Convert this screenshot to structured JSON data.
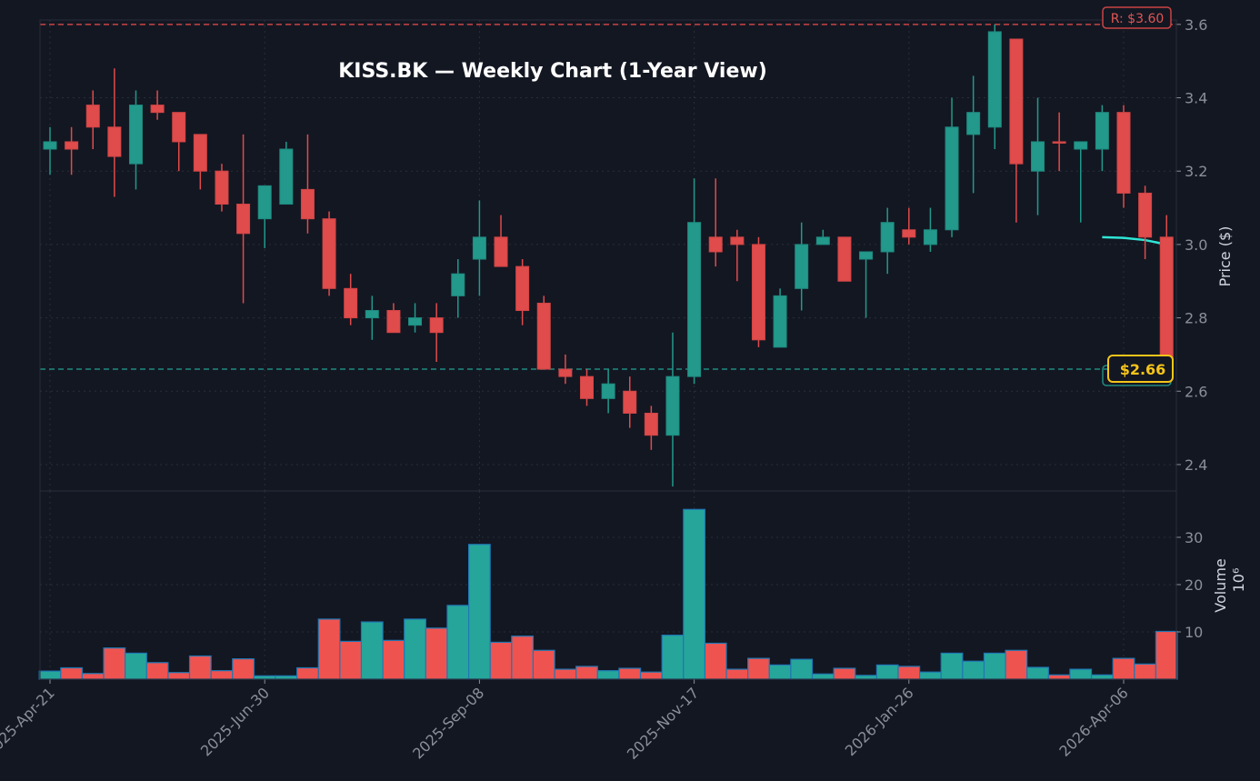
{
  "chart_data": {
    "type": "candlestick",
    "title": "KISS.BK — Weekly Chart (1-Year View)",
    "price_ylabel": "Price ($)",
    "volume_ylabel": "Volume",
    "volume_unit": "10⁶",
    "price_ylim": [
      2.328,
      3.612
    ],
    "price_yticks": [
      "2.4",
      "2.6",
      "2.8",
      "3.0",
      "3.2",
      "3.4",
      "3.6"
    ],
    "volume_ylim": [
      0,
      39.8
    ],
    "volume_yticks": [
      "10",
      "20",
      "30"
    ],
    "xticks": [
      {
        "index": 0,
        "label": "2025-Apr-21"
      },
      {
        "index": 10,
        "label": "2025-Jun-30"
      },
      {
        "index": 20,
        "label": "2025-Sep-08"
      },
      {
        "index": 30,
        "label": "2025-Nov-17"
      },
      {
        "index": 40,
        "label": "2026-Jan-26"
      },
      {
        "index": 50,
        "label": "2026-Apr-06"
      }
    ],
    "grid": true,
    "colors": {
      "up": "#26a69a",
      "down": "#ef5350",
      "background": "#131722",
      "volume_edge": "#1f77b4",
      "ma": "#2ee6d6",
      "price_tag": "#f5c518"
    },
    "resistance": {
      "value": 3.6,
      "label": "R: $3.60"
    },
    "support": {
      "value": 2.66
    },
    "last_price": {
      "value": 2.66,
      "label": "$2.66"
    },
    "ma_line": [
      [
        49,
        3.02
      ],
      [
        50,
        3.018
      ],
      [
        51,
        3.012
      ],
      [
        52,
        3.0
      ]
    ],
    "ohlc": [
      [
        3.26,
        3.32,
        3.19,
        3.28
      ],
      [
        3.28,
        3.32,
        3.19,
        3.26
      ],
      [
        3.38,
        3.42,
        3.26,
        3.32
      ],
      [
        3.32,
        3.48,
        3.13,
        3.24
      ],
      [
        3.22,
        3.42,
        3.15,
        3.38
      ],
      [
        3.38,
        3.42,
        3.34,
        3.36
      ],
      [
        3.36,
        3.36,
        3.2,
        3.28
      ],
      [
        3.3,
        3.3,
        3.15,
        3.2
      ],
      [
        3.2,
        3.22,
        3.09,
        3.11
      ],
      [
        3.11,
        3.3,
        2.84,
        3.03
      ],
      [
        3.07,
        3.16,
        2.99,
        3.16
      ],
      [
        3.11,
        3.28,
        3.11,
        3.26
      ],
      [
        3.15,
        3.3,
        3.03,
        3.07
      ],
      [
        3.07,
        3.09,
        2.86,
        2.88
      ],
      [
        2.88,
        2.92,
        2.78,
        2.8
      ],
      [
        2.8,
        2.86,
        2.74,
        2.82
      ],
      [
        2.82,
        2.84,
        2.76,
        2.76
      ],
      [
        2.78,
        2.84,
        2.76,
        2.8
      ],
      [
        2.8,
        2.84,
        2.68,
        2.76
      ],
      [
        2.86,
        2.96,
        2.8,
        2.92
      ],
      [
        2.96,
        3.12,
        2.86,
        3.02
      ],
      [
        3.02,
        3.08,
        2.94,
        2.94
      ],
      [
        2.94,
        2.96,
        2.78,
        2.82
      ],
      [
        2.84,
        2.86,
        2.66,
        2.66
      ],
      [
        2.66,
        2.7,
        2.62,
        2.64
      ],
      [
        2.64,
        2.66,
        2.56,
        2.58
      ],
      [
        2.58,
        2.66,
        2.54,
        2.62
      ],
      [
        2.6,
        2.64,
        2.5,
        2.54
      ],
      [
        2.54,
        2.56,
        2.44,
        2.48
      ],
      [
        2.48,
        2.76,
        2.34,
        2.64
      ],
      [
        2.64,
        3.18,
        2.62,
        3.06
      ],
      [
        3.02,
        3.18,
        2.94,
        2.98
      ],
      [
        3.02,
        3.04,
        2.9,
        3.0
      ],
      [
        3.0,
        3.02,
        2.72,
        2.74
      ],
      [
        2.72,
        2.88,
        2.72,
        2.86
      ],
      [
        2.88,
        3.06,
        2.82,
        3.0
      ],
      [
        3.0,
        3.04,
        3.0,
        3.02
      ],
      [
        3.02,
        3.02,
        2.9,
        2.9
      ],
      [
        2.96,
        2.98,
        2.8,
        2.98
      ],
      [
        2.98,
        3.1,
        2.92,
        3.06
      ],
      [
        3.04,
        3.1,
        3.0,
        3.02
      ],
      [
        3.0,
        3.1,
        2.98,
        3.04
      ],
      [
        3.04,
        3.4,
        3.02,
        3.32
      ],
      [
        3.3,
        3.46,
        3.14,
        3.36
      ],
      [
        3.32,
        3.6,
        3.26,
        3.58
      ],
      [
        3.56,
        3.56,
        3.06,
        3.22
      ],
      [
        3.2,
        3.4,
        3.08,
        3.28
      ],
      [
        3.28,
        3.36,
        3.2,
        3.28
      ],
      [
        3.26,
        3.28,
        3.06,
        3.28
      ],
      [
        3.26,
        3.38,
        3.2,
        3.36
      ],
      [
        3.36,
        3.38,
        3.1,
        3.14
      ],
      [
        3.14,
        3.16,
        2.96,
        3.02
      ],
      [
        3.02,
        3.08,
        2.66,
        2.66
      ]
    ],
    "direction": [
      "up",
      "down",
      "down",
      "down",
      "up",
      "down",
      "down",
      "down",
      "down",
      "down",
      "up",
      "up",
      "down",
      "down",
      "down",
      "up",
      "down",
      "up",
      "down",
      "up",
      "up",
      "down",
      "down",
      "down",
      "down",
      "down",
      "up",
      "down",
      "down",
      "up",
      "up",
      "down",
      "down",
      "down",
      "up",
      "up",
      "up",
      "down",
      "up",
      "up",
      "down",
      "up",
      "up",
      "up",
      "up",
      "down",
      "up",
      "down",
      "up",
      "up",
      "down",
      "down",
      "down"
    ],
    "volume": [
      1.7,
      2.4,
      1.2,
      6.6,
      5.5,
      3.5,
      1.4,
      4.9,
      1.8,
      4.3,
      0.7,
      0.7,
      2.4,
      12.7,
      8.0,
      12.1,
      8.2,
      12.7,
      10.8,
      15.6,
      28.5,
      7.8,
      9.1,
      6.1,
      2.1,
      2.7,
      1.8,
      2.3,
      1.5,
      9.3,
      35.9,
      7.6,
      2.1,
      4.4,
      3.0,
      4.2,
      1.1,
      2.3,
      0.8,
      3.0,
      2.7,
      1.5,
      5.5,
      3.8,
      5.5,
      6.1,
      2.5,
      0.9,
      2.1,
      0.9,
      4.4,
      3.2,
      10.1
    ]
  }
}
